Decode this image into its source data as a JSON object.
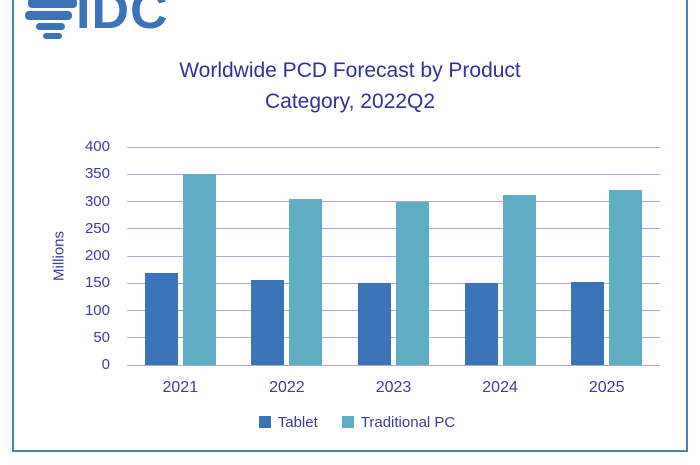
{
  "brand": {
    "logo_text": "IDC",
    "logo_color": "#3b73b8"
  },
  "header": {
    "title_line1": "Worldwide PCD Forecast by Product",
    "title_line2": "Category, 2022Q2"
  },
  "colors": {
    "frame_border": "#4d7eb7",
    "gridline": "#a8a8dc",
    "axis_text": "#3c3ca6",
    "title_text": "#31309e",
    "tablet_bar": "#3b73b8",
    "traditional_pc_bar": "#5fadc5"
  },
  "chart_data": {
    "type": "bar",
    "title": "Worldwide PCD Forecast by Product Category, 2022Q2",
    "categories": [
      "2021",
      "2022",
      "2023",
      "2024",
      "2025"
    ],
    "series": [
      {
        "name": "Tablet",
        "color": "#3b73b8",
        "values": [
          168,
          156,
          150,
          151,
          153
        ]
      },
      {
        "name": "Traditional PC",
        "color": "#5fadc5",
        "values": [
          350,
          305,
          299,
          312,
          321
        ]
      }
    ],
    "xlabel": "",
    "ylabel": "Millions",
    "ylim": [
      0,
      400
    ],
    "ytick_step": 50,
    "grid": true,
    "legend_position": "bottom"
  }
}
